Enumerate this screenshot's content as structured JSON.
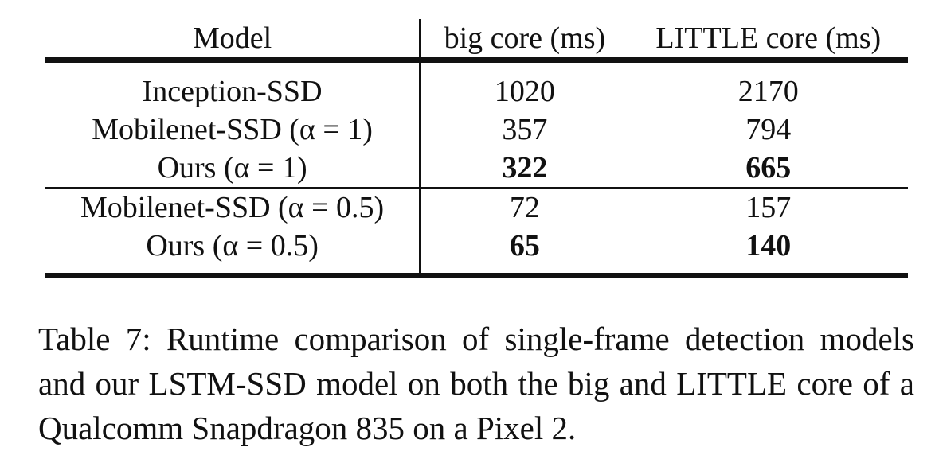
{
  "table": {
    "headers": [
      "Model",
      "big core (ms)",
      "LITTLE core (ms)"
    ],
    "group1": [
      {
        "model": "Inception-SSD",
        "big": "1020",
        "little": "2170",
        "bold": false
      },
      {
        "model": "Mobilenet-SSD (α = 1)",
        "big": "357",
        "little": "794",
        "bold": false
      },
      {
        "model": "Ours (α = 1)",
        "big": "322",
        "little": "665",
        "bold": true
      }
    ],
    "group2": [
      {
        "model": "Mobilenet-SSD (α = 0.5)",
        "big": "72",
        "little": "157",
        "bold": false
      },
      {
        "model": "Ours (α = 0.5)",
        "big": "65",
        "little": "140",
        "bold": true
      }
    ]
  },
  "caption": "Table 7: Runtime comparison of single-frame detection models and our LSTM-SSD model on both the big and LITTLE core of a Qualcomm Snapdragon 835 on a Pixel 2."
}
